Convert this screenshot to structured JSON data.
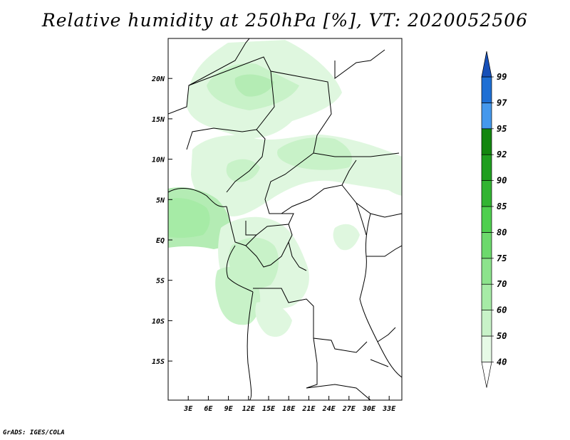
{
  "title": "Relative humidity at 250hPa [%], VT: 2020052506",
  "credit": "GrADS: IGES/COLA",
  "map": {
    "lat_labels": [
      "20N",
      "15N",
      "10N",
      "5N",
      "EQ",
      "5S",
      "10S",
      "15S"
    ],
    "lat_values": [
      20,
      15,
      10,
      5,
      0,
      -5,
      -10,
      -15
    ],
    "lon_labels": [
      "3E",
      "6E",
      "9E",
      "12E",
      "15E",
      "18E",
      "21E",
      "24E",
      "27E",
      "30E",
      "33E"
    ],
    "lon_values": [
      3,
      6,
      9,
      12,
      15,
      18,
      21,
      24,
      27,
      30,
      33
    ]
  },
  "colorbar": {
    "levels": [
      "40",
      "50",
      "60",
      "70",
      "75",
      "80",
      "85",
      "90",
      "92",
      "95",
      "97",
      "99"
    ],
    "colors": [
      "#ffffff",
      "#e6fae6",
      "#c8f2c8",
      "#a6eba6",
      "#8ce38c",
      "#6cd96c",
      "#4fcf4f",
      "#32b432",
      "#1f9e1f",
      "#13860f",
      "#4598ec",
      "#1e6fd4",
      "#1750b8"
    ]
  }
}
